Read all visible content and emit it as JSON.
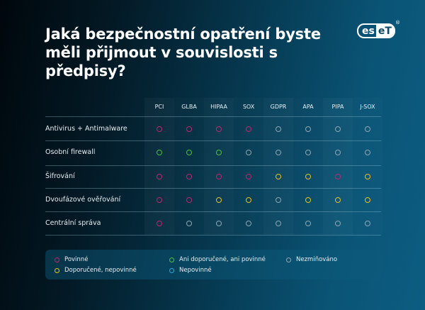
{
  "title": "Jaká bezpečnostní opatření byste měli přijmout v souvislosti s předpisy?",
  "logo": {
    "left": "es",
    "right": "eT",
    "registered": "®",
    "icon": "eset-logo-icon"
  },
  "colors": {
    "povinne": "#c0246e",
    "doporucene": "#e4c21c",
    "ani": "#4fbf3a",
    "nepovinne": "#2aa8d8",
    "nezminovano": "#8fa6b2"
  },
  "columns": [
    "PCI",
    "GLBA",
    "HIPAA",
    "SOX",
    "GDPR",
    "APA",
    "PIPA",
    "J-SOX"
  ],
  "rows": [
    {
      "label": "Antivirus + Antimalware",
      "values": [
        "povinne",
        "povinne",
        "povinne",
        "povinne",
        "nezminovano",
        "nezminovano",
        "nezminovano",
        "nezminovano"
      ]
    },
    {
      "label": "Osobní firewall",
      "values": [
        "ani",
        "ani",
        "ani",
        "nezminovano",
        "nezminovano",
        "nezminovano",
        "nezminovano",
        "nezminovano"
      ]
    },
    {
      "label": "Šifrování",
      "values": [
        "povinne",
        "povinne",
        "povinne",
        "povinne",
        "doporucene",
        "doporucene",
        "povinne",
        "doporucene"
      ]
    },
    {
      "label": "Dvoufázové ověřování",
      "values": [
        "povinne",
        "povinne",
        "doporucene",
        "doporucene",
        "nezminovano",
        "doporucene",
        "doporucene",
        "doporucene"
      ]
    },
    {
      "label": "Centrální správa",
      "values": [
        "povinne",
        "nezminovano",
        "nezminovano",
        "nezminovano",
        "nezminovano",
        "nezminovano",
        "nezminovano",
        "nezminovano"
      ]
    }
  ],
  "legend": [
    {
      "key": "povinne",
      "label": "Povinné"
    },
    {
      "key": "doporucene",
      "label": "Doporučené, nepovinné"
    },
    {
      "key": "ani",
      "label": "Ani doporučené, ani povinné"
    },
    {
      "key": "nepovinne",
      "label": "Nepovinné"
    },
    {
      "key": "nezminovano",
      "label": "Nezmiňováno"
    }
  ]
}
